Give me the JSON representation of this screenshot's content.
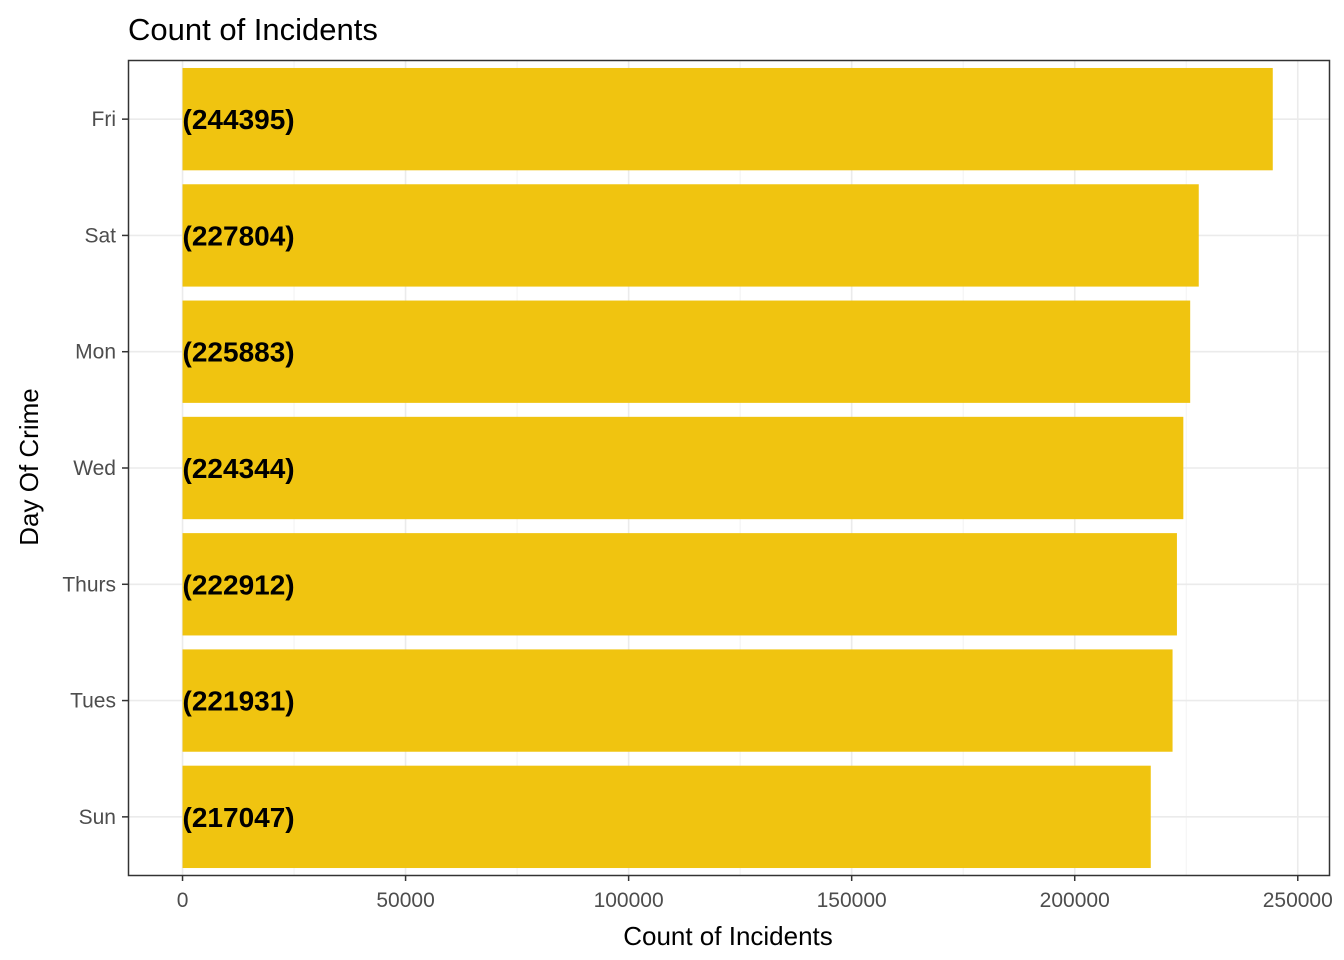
{
  "chart_data": {
    "type": "bar",
    "orientation": "horizontal",
    "title": "Count of Incidents",
    "xlabel": "Count of Incidents",
    "ylabel": "Day Of Crime",
    "categories": [
      "Fri",
      "Sat",
      "Mon",
      "Wed",
      "Thurs",
      "Tues",
      "Sun"
    ],
    "values": [
      244395,
      227804,
      225883,
      224344,
      222912,
      221931,
      217047
    ],
    "data_labels": [
      "(244395)",
      "(227804)",
      "(225883)",
      "(224344)",
      "(222912)",
      "(221931)",
      "(217047)"
    ],
    "x_ticks": [
      0,
      50000,
      100000,
      150000,
      200000,
      250000
    ],
    "x_tick_labels": [
      "0",
      "50000",
      "100000",
      "150000",
      "200000",
      "250000"
    ],
    "xlim": [
      -12000,
      257000
    ],
    "bar_color": "#f0c410",
    "grid": true,
    "legend": "none"
  }
}
